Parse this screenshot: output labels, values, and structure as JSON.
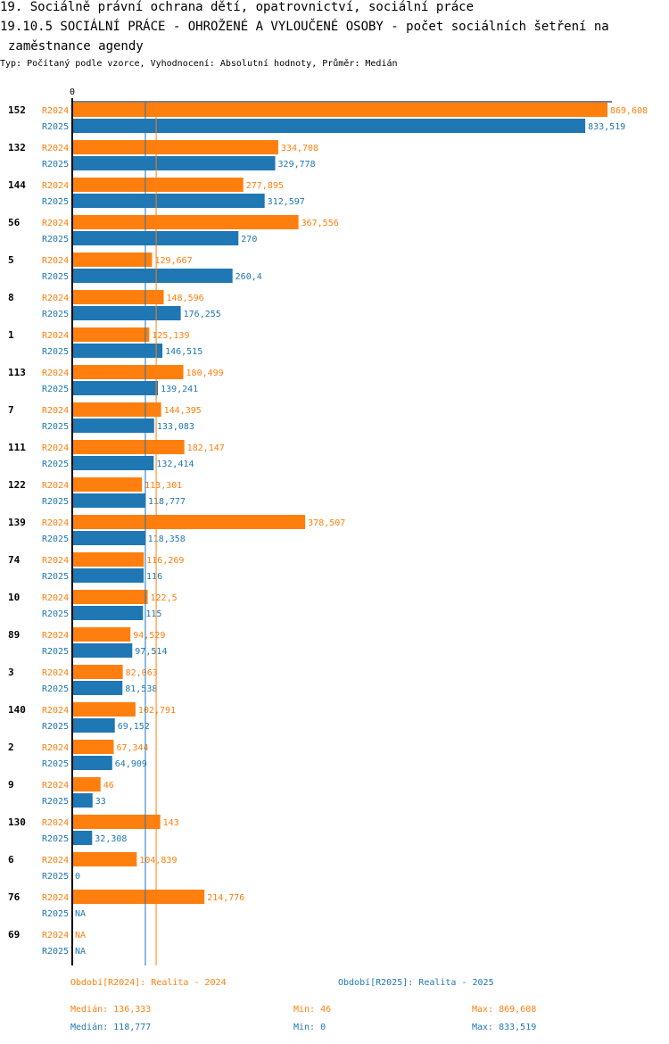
{
  "header": {
    "line1": "19. Sociálně právní ochrana dětí, opatrovnictví, sociální práce",
    "line2": "19.10.5 SOCIÁLNÍ PRÁCE - OHROŽENÉ A VYLOUČENÉ OSOBY - počet sociálních šetření na",
    "line3": "zaměstnance agendy",
    "subtitle": "Typ: Počítaný podle vzorce, Vyhodnocení: Absolutní hodnoty, Průměr: Medián"
  },
  "colors": {
    "r2024": "#ff7f0e",
    "r2025": "#1f77b4"
  },
  "chart_data": {
    "type": "bar",
    "orientation": "horizontal",
    "title": "19.10.5 SOCIÁLNÍ PRÁCE - OHROŽENÉ A VYLOUČENÉ OSOBY - počet sociálních šetření na zaměstnance agendy",
    "x_tick_labels": [
      "0"
    ],
    "xlim": [
      0,
      869.608
    ],
    "categories": [
      "152",
      "132",
      "144",
      "56",
      "5",
      "8",
      "1",
      "113",
      "7",
      "111",
      "122",
      "139",
      "74",
      "10",
      "89",
      "3",
      "140",
      "2",
      "9",
      "130",
      "6",
      "76",
      "69"
    ],
    "series": [
      {
        "name": "R2024",
        "values": [
          869.608,
          334.708,
          277.895,
          367.556,
          129.667,
          148.596,
          125.139,
          180.499,
          144.395,
          182.147,
          113.301,
          378.507,
          116.269,
          122.5,
          94.529,
          82.063,
          102.791,
          67.344,
          46,
          143,
          104.839,
          214.776,
          null
        ],
        "labels": [
          "869,608",
          "334,708",
          "277,895",
          "367,556",
          "129,667",
          "148,596",
          "125,139",
          "180,499",
          "144,395",
          "182,147",
          "113,301",
          "378,507",
          "116,269",
          "122,5",
          "94,529",
          "82,063",
          "102,791",
          "67,344",
          "46",
          "143",
          "104,839",
          "214,776",
          "NA"
        ]
      },
      {
        "name": "R2025",
        "values": [
          833.519,
          329.778,
          312.597,
          270,
          260.4,
          176.255,
          146.515,
          139.241,
          133.083,
          132.414,
          118.777,
          118.358,
          116,
          115,
          97.514,
          81.538,
          69.152,
          64.909,
          33,
          32.308,
          0,
          null,
          null
        ],
        "labels": [
          "833,519",
          "329,778",
          "312,597",
          "270",
          "260,4",
          "176,255",
          "146,515",
          "139,241",
          "133,083",
          "132,414",
          "118,777",
          "118,358",
          "116",
          "115",
          "97,514",
          "81,538",
          "69,152",
          "64,909",
          "33",
          "32,308",
          "0",
          "NA",
          "NA"
        ]
      }
    ],
    "medians": {
      "R2024": 136.333,
      "R2025": 118.777
    }
  },
  "legend": {
    "r2024": "Období[R2024]: Realita - 2024",
    "r2025": "Období[R2025]: Realita - 2025"
  },
  "stats": {
    "r2024": {
      "median": "Medián: 136,333",
      "min": "Min: 46",
      "max": "Max: 869,608"
    },
    "r2025": {
      "median": "Medián: 118,777",
      "min": "Min: 0",
      "max": "Max: 833,519"
    }
  }
}
